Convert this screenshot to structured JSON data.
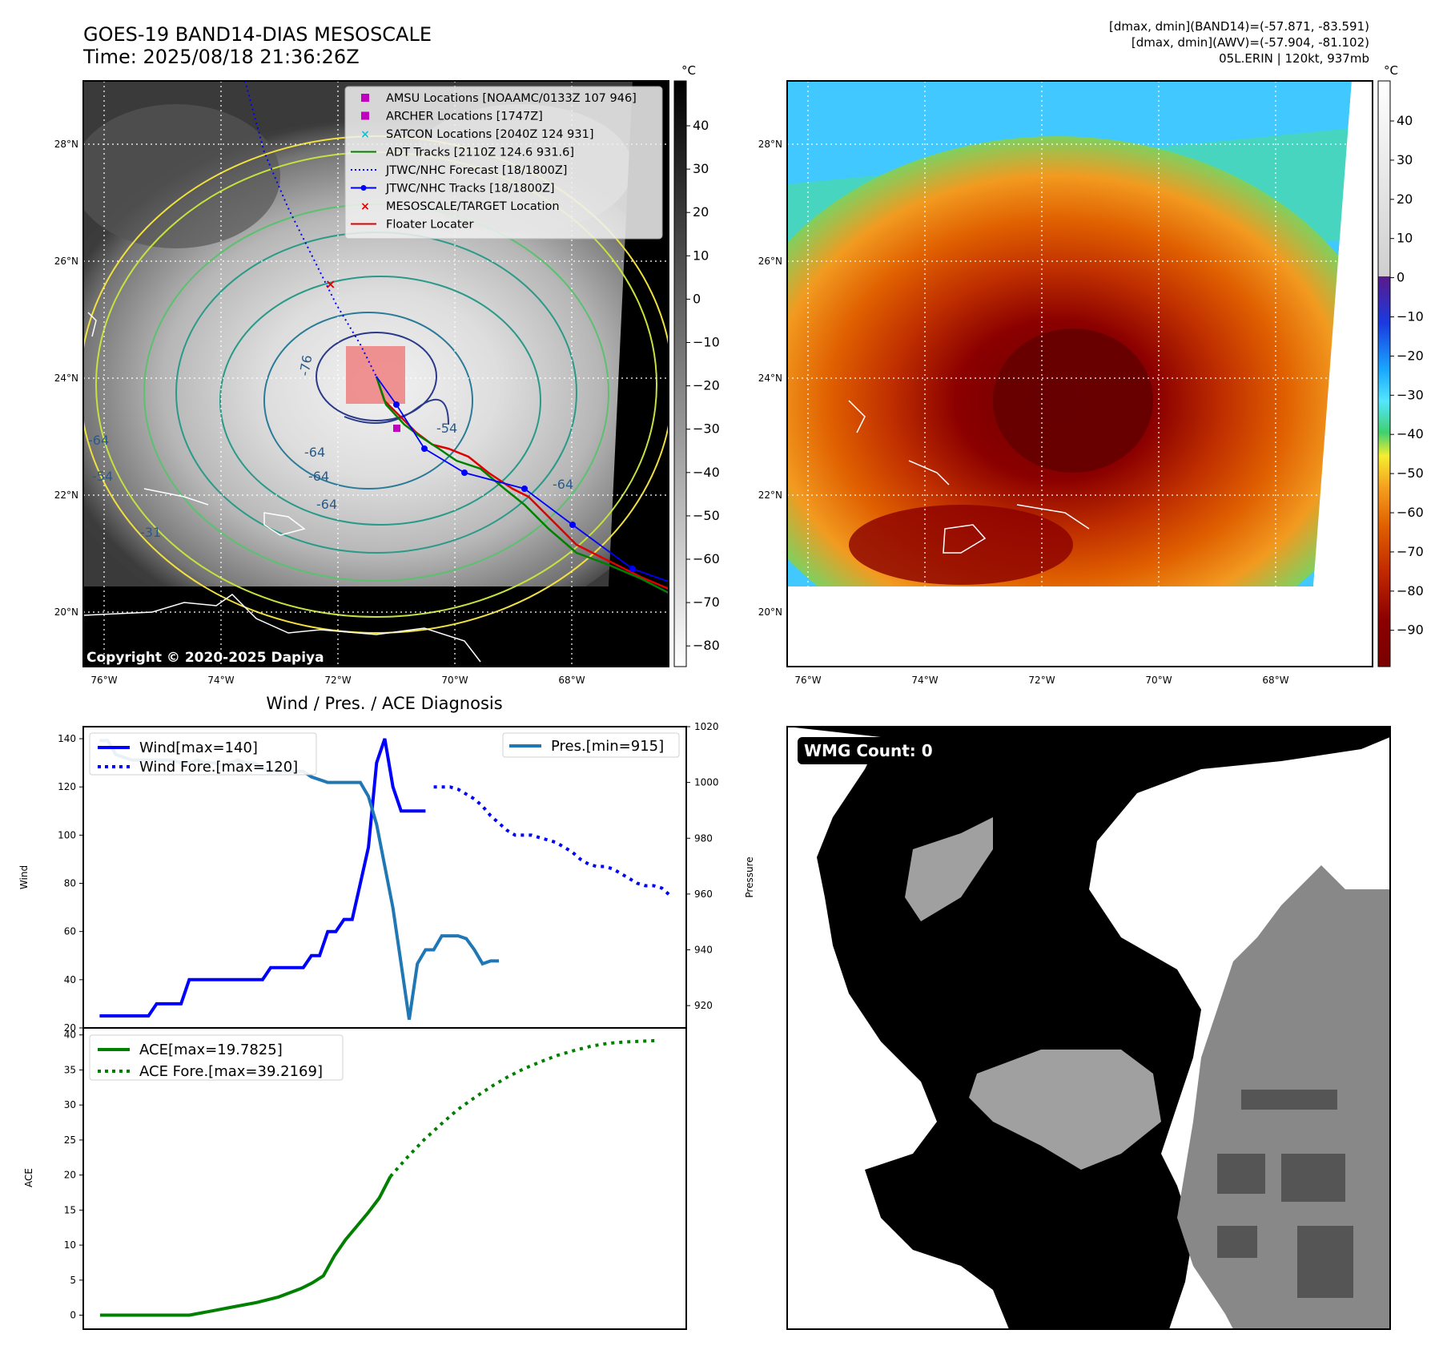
{
  "header": {
    "title_line1": "GOES-19 BAND14-DIAS MESOSCALE",
    "title_line2": "Time: 2025/08/18 21:36:26Z",
    "info_line1": "[dmax, dmin](BAND14)=(-57.871, -83.591)",
    "info_line2": "[dmax, dmin](AWV)=(-57.904, -81.102)",
    "info_line3": "05L.ERIN | 120kt, 937mb"
  },
  "colors": {
    "wind": "#0000ff",
    "pressure": "#1f77b4",
    "ace": "#008000",
    "track_red": "#e00000",
    "adt_green": "#008000",
    "satcon_cyan": "#17becf",
    "archer_magenta": "#c000c0"
  },
  "map": {
    "lon_labels": [
      "76°W",
      "74°W",
      "72°W",
      "70°W",
      "68°W"
    ],
    "lat_labels": [
      "28°N",
      "26°N",
      "24°N",
      "22°N",
      "20°N"
    ],
    "copyright": "Copyright © 2020-2025 Dapiya",
    "contour_labels": [
      "-76",
      "-64",
      "-64",
      "-64",
      "-54",
      "-54",
      "-64",
      "-31",
      "-64"
    ],
    "legend": [
      {
        "label": "AMSU Locations [NOAAMC/0133Z 107 946]",
        "marker": "square",
        "color": "#c000c0"
      },
      {
        "label": "ARCHER Locations [1747Z]",
        "marker": "square",
        "color": "#c000c0"
      },
      {
        "label": "SATCON Locations [2040Z 124 931]",
        "marker": "x",
        "color": "#17becf"
      },
      {
        "label": "ADT Tracks [2110Z 124.6 931.6]",
        "marker": "line",
        "color": "#008000"
      },
      {
        "label": "JTWC/NHC Forecast [18/1800Z]",
        "marker": "dotted",
        "color": "#0000ff"
      },
      {
        "label": "JTWC/NHC Tracks [18/1800Z]",
        "marker": "dotline",
        "color": "#0000ff"
      },
      {
        "label": "MESOSCALE/TARGET Location",
        "marker": "x",
        "color": "#e00000"
      },
      {
        "label": "Floater Locater",
        "marker": "line",
        "color": "#e00000"
      }
    ],
    "colorbar_gray": {
      "unit": "°C",
      "ticks": [
        "40",
        "30",
        "20",
        "10",
        "0",
        "−10",
        "−20",
        "−30",
        "−40",
        "−50",
        "−60",
        "−70",
        "−80"
      ]
    },
    "colorbar_color": {
      "unit": "°C",
      "ticks": [
        "40",
        "30",
        "20",
        "10",
        "0",
        "−10",
        "−20",
        "−30",
        "−40",
        "−50",
        "−60",
        "−70",
        "−80",
        "−90"
      ]
    }
  },
  "wmg": {
    "label": "WMG Count: 0"
  },
  "chart_data": [
    {
      "type": "line",
      "title": "Wind / Pres. / ACE Diagnosis",
      "ylabel": "Wind",
      "ylabel_right": "Pressure",
      "ylim": [
        20,
        145
      ],
      "ylim_right": [
        912,
        1020
      ],
      "yticks": [
        20,
        40,
        60,
        80,
        100,
        120,
        140
      ],
      "yticks_right": [
        920,
        940,
        960,
        980,
        1000,
        1020
      ],
      "legend_left": [
        "Wind[max=140]",
        "Wind Fore.[max=120]"
      ],
      "legend_right": [
        "Pres.[min=915]"
      ],
      "series": [
        {
          "name": "Wind[max=140]",
          "style": "solid",
          "color": "#0000ff",
          "x": [
            0,
            1,
            2,
            3,
            4,
            5,
            6,
            7,
            8,
            9,
            10,
            11,
            12,
            13,
            14,
            15,
            16,
            17,
            18,
            19,
            20,
            21,
            22,
            23,
            24,
            25,
            26,
            27,
            28,
            29,
            30,
            31,
            32,
            33,
            34,
            35,
            36,
            37,
            38,
            39,
            40
          ],
          "values": [
            25,
            25,
            25,
            25,
            25,
            25,
            25,
            30,
            30,
            30,
            30,
            40,
            40,
            40,
            40,
            40,
            40,
            40,
            40,
            40,
            40,
            45,
            45,
            45,
            45,
            45,
            50,
            50,
            60,
            60,
            65,
            65,
            80,
            95,
            130,
            140,
            120,
            110,
            110,
            110,
            110
          ]
        },
        {
          "name": "Wind Fore.[max=120]",
          "style": "dotted",
          "color": "#0000ff",
          "x": [
            41,
            42,
            43,
            44,
            45,
            46,
            47,
            48,
            49,
            50,
            51,
            52,
            53,
            54,
            55,
            56,
            57,
            58,
            59,
            60,
            61,
            62,
            63,
            64,
            65,
            66,
            67,
            68,
            69,
            70
          ],
          "values": [
            120,
            120,
            120,
            119,
            117,
            115,
            112,
            108,
            105,
            102,
            100,
            100,
            100,
            99,
            98,
            97,
            95,
            93,
            90,
            88,
            87,
            87,
            86,
            84,
            82,
            80,
            79,
            79,
            78,
            75
          ]
        },
        {
          "name": "Pres.[min=915]",
          "style": "solid",
          "color": "#1f77b4",
          "axis": "right",
          "x": [
            0,
            1,
            2,
            3,
            4,
            5,
            6,
            7,
            8,
            9,
            10,
            11,
            12,
            13,
            14,
            15,
            16,
            17,
            18,
            19,
            20,
            21,
            22,
            23,
            24,
            25,
            26,
            27,
            28,
            29,
            30,
            31,
            32,
            33,
            34,
            35,
            36,
            37,
            38,
            39,
            40,
            41,
            42,
            43,
            44,
            45,
            46,
            47,
            48,
            49
          ],
          "values": [
            1015,
            1015,
            1010,
            1009,
            1008,
            1008,
            1008,
            1008,
            1008,
            1008,
            1007,
            1007,
            1008,
            1007,
            1007,
            1006,
            1007,
            1008,
            1007,
            1007,
            1005,
            1004,
            1004,
            1004,
            1004,
            1004,
            1002,
            1001,
            1000,
            1000,
            1000,
            1000,
            1000,
            995,
            985,
            970,
            955,
            935,
            915,
            935,
            940,
            940,
            945,
            945,
            945,
            944,
            940,
            935,
            936,
            936
          ]
        }
      ]
    },
    {
      "type": "line",
      "ylabel": "ACE",
      "ylim": [
        -2,
        41
      ],
      "yticks": [
        0,
        5,
        10,
        15,
        20,
        25,
        30,
        35,
        40
      ],
      "legend": [
        "ACE[max=19.7825]",
        "ACE Fore.[max=39.2169]"
      ],
      "series": [
        {
          "name": "ACE[max=19.7825]",
          "style": "solid",
          "color": "#008000",
          "x": [
            0,
            4,
            8,
            12,
            16,
            20,
            24,
            28,
            30,
            32,
            34,
            36,
            38,
            40,
            42,
            44,
            46,
            48,
            50,
            52
          ],
          "values": [
            0,
            0,
            0,
            0,
            0,
            0.6,
            1.2,
            1.8,
            2.2,
            2.6,
            3.2,
            3.8,
            4.6,
            5.6,
            8.5,
            10.8,
            12.7,
            14.6,
            16.7,
            19.8
          ]
        },
        {
          "name": "ACE Fore.[max=39.2169]",
          "style": "dotted",
          "color": "#008000",
          "x": [
            52,
            55,
            58,
            61,
            64,
            67,
            70,
            73,
            76,
            79,
            82,
            85,
            88,
            91,
            94,
            97,
            100
          ],
          "values": [
            19.8,
            22.5,
            25,
            27.2,
            29.3,
            31,
            32.6,
            34,
            35.2,
            36.2,
            37.1,
            37.8,
            38.4,
            38.8,
            39.0,
            39.1,
            39.2
          ]
        }
      ]
    }
  ]
}
